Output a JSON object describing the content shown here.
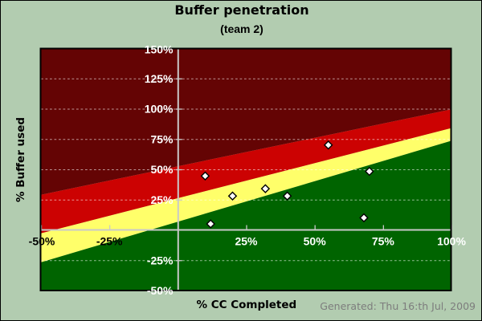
{
  "page": {
    "background_color": "#b2ccb0",
    "frame_color": "#000000"
  },
  "title": "Buffer penetration",
  "subtitle": "(team 2)",
  "footer": {
    "text": "Generated: Thu 16:th Jul, 2009",
    "color": "#7d7d7d"
  },
  "chart_data": {
    "type": "scatter",
    "title": "Buffer penetration",
    "subtitle": "(team 2)",
    "xlabel": "% CC Completed",
    "ylabel": "% Buffer used",
    "xlim": [
      -50,
      100
    ],
    "ylim": [
      -50,
      150
    ],
    "x_ticks": [
      {
        "value": -50,
        "label": "-50%",
        "color": "#000000"
      },
      {
        "value": -25,
        "label": "-25%",
        "color": "#000000"
      },
      {
        "value": 25,
        "label": "25%",
        "color": "#ffffff"
      },
      {
        "value": 50,
        "label": "50%",
        "color": "#ffffff"
      },
      {
        "value": 75,
        "label": "75%",
        "color": "#ffffff"
      },
      {
        "value": 100,
        "label": "100%",
        "color": "#ffffff"
      }
    ],
    "y_ticks": [
      {
        "value": 150,
        "label": "150%",
        "color": "#ffffff"
      },
      {
        "value": 125,
        "label": "125%",
        "color": "#ffffff"
      },
      {
        "value": 100,
        "label": "100%",
        "color": "#ffffff"
      },
      {
        "value": 75,
        "label": "75%",
        "color": "#ffffff"
      },
      {
        "value": 50,
        "label": "50%",
        "color": "#ffffff"
      },
      {
        "value": 25,
        "label": "25%",
        "color": "#ffffff"
      },
      {
        "value": -25,
        "label": "-25%",
        "color": "#ffffff"
      },
      {
        "value": -50,
        "label": "-50%",
        "color": "#ffffff"
      }
    ],
    "grid": {
      "horizontal_dashed_at": [
        125,
        100,
        75,
        50,
        25,
        -25
      ],
      "dash_color": "#ffffff",
      "dash_opacity": 0.58,
      "axis_line_color": "#c9c9c9",
      "zero_axes": true
    },
    "zones": [
      {
        "name": "dark-red-zone",
        "color": "#640404",
        "from": "top",
        "bottom_line": {
          "at_x_-50": 29,
          "at_x_100": 99.5
        }
      },
      {
        "name": "red-zone",
        "color": "#cc0202",
        "bottom_line": {
          "at_x_-50": -2.8,
          "at_x_100": 84
        }
      },
      {
        "name": "yellow-zone",
        "color": "#ffff6a",
        "bottom_line": {
          "at_x_-50": -26.7,
          "at_x_100": 73.6
        }
      },
      {
        "name": "green-zone",
        "color": "#006400",
        "to": "bottom"
      }
    ],
    "points": [
      {
        "x": 10,
        "y": 44.5
      },
      {
        "x": 12,
        "y": 5
      },
      {
        "x": 20,
        "y": 28
      },
      {
        "x": 32,
        "y": 34
      },
      {
        "x": 40,
        "y": 28
      },
      {
        "x": 55,
        "y": 70
      },
      {
        "x": 68,
        "y": 10
      },
      {
        "x": 70,
        "y": 48.3
      }
    ],
    "marker": {
      "shape": "diamond",
      "fill": "#ffffff",
      "stroke": "#000000",
      "size": 9.5
    }
  }
}
